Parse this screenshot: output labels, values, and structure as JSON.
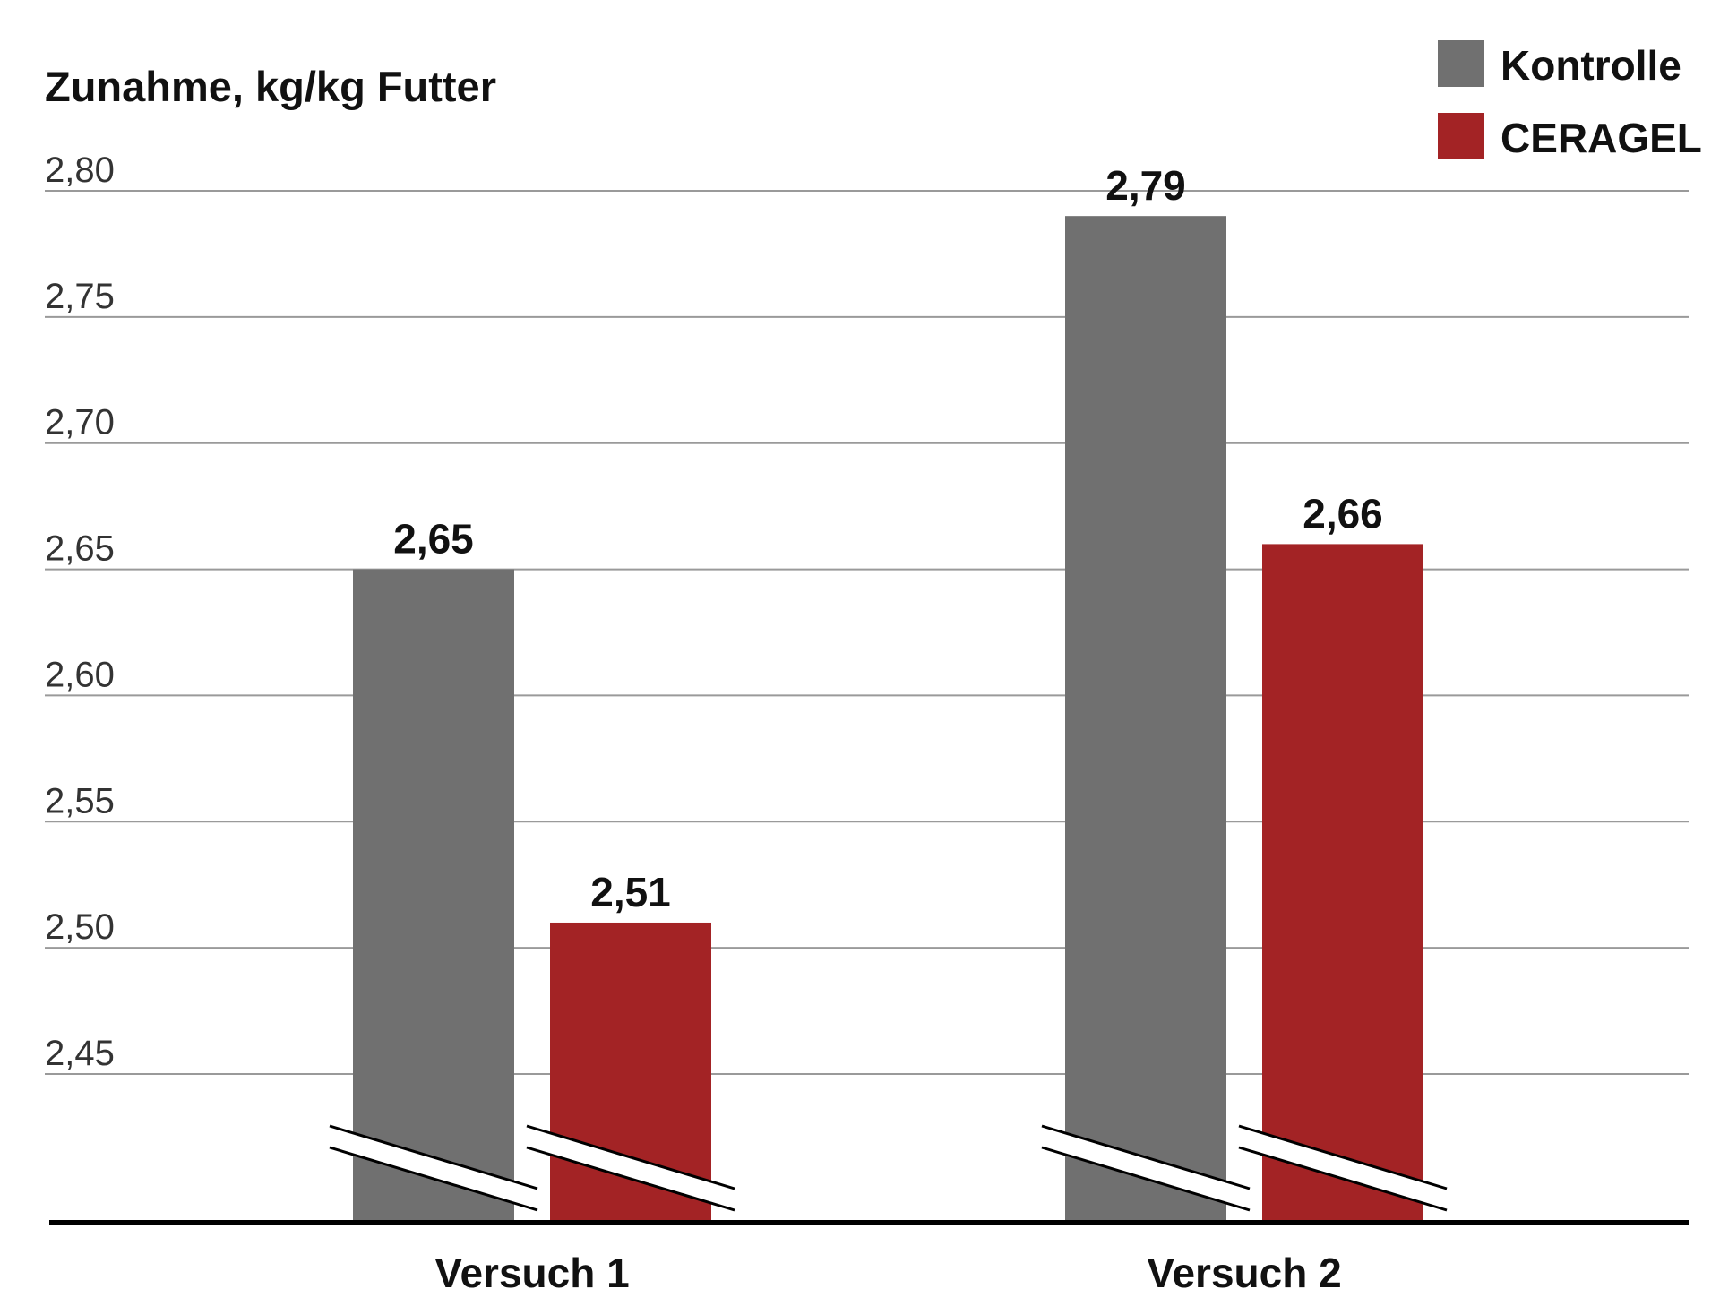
{
  "chart_data": {
    "type": "bar",
    "title": "",
    "xlabel": "",
    "ylabel": "Zunahme, kg/kg Futter",
    "categories": [
      "Versuch 1",
      "Versuch 2"
    ],
    "series": [
      {
        "name": "Kontrolle",
        "color": "#707070",
        "values": [
          2.65,
          2.79
        ]
      },
      {
        "name": "CERAGEL",
        "color": "#a32325",
        "values": [
          2.51,
          2.66
        ]
      }
    ],
    "value_labels": [
      [
        "2,65",
        "2,79"
      ],
      [
        "2,51",
        "2,66"
      ]
    ],
    "yticks": [
      2.45,
      2.5,
      2.55,
      2.6,
      2.65,
      2.7,
      2.75,
      2.8
    ],
    "ytick_labels": [
      "2,45",
      "2,50",
      "2,55",
      "2,60",
      "2,65",
      "2,70",
      "2,75",
      "2,80"
    ],
    "ylim": [
      2.45,
      2.8
    ],
    "axis_break": true,
    "grid": true,
    "legend_position": "top-right"
  }
}
